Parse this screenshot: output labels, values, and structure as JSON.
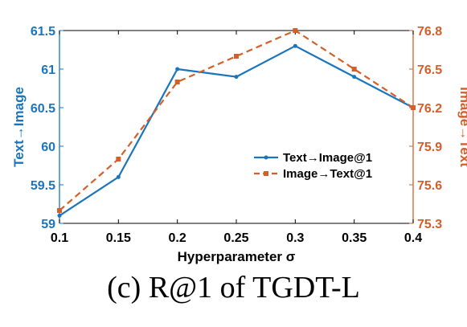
{
  "caption": "(c) R@1 of TGDT-L",
  "chart_data": {
    "type": "line",
    "x": [
      0.1,
      0.15,
      0.2,
      0.25,
      0.3,
      0.35,
      0.4
    ],
    "x_tick_labels": [
      "0.1",
      "0.15",
      "0.2",
      "0.25",
      "0.3",
      "0.35",
      "0.4"
    ],
    "xlabel": "Hyperparameter σ",
    "xlim": [
      0.1,
      0.4
    ],
    "ylabel_left": "Text→Image",
    "ylim_left": [
      59,
      61.5
    ],
    "y_ticks_left": [
      "59",
      "59.5",
      "60",
      "60.5",
      "61",
      "61.5"
    ],
    "ylabel_right": "Image→Text",
    "ylim_right": [
      75.3,
      76.8
    ],
    "y_ticks_right": [
      "75.3",
      "75.6",
      "75.9",
      "76.2",
      "76.5",
      "76.8"
    ],
    "grid": false,
    "legend_placement": "center-right",
    "series": [
      {
        "name": "Text→Image@1",
        "axis": "left",
        "color": "#1a75bc",
        "style": "solid",
        "marker": "dot",
        "values": [
          59.1,
          59.6,
          61.0,
          60.9,
          61.3,
          60.9,
          60.5
        ]
      },
      {
        "name": "Image→Text@1",
        "axis": "right",
        "color": "#d35f2a",
        "style": "dashed",
        "marker": "square",
        "values": [
          75.4,
          75.8,
          76.4,
          76.6,
          76.8,
          76.5,
          76.2
        ]
      }
    ]
  }
}
